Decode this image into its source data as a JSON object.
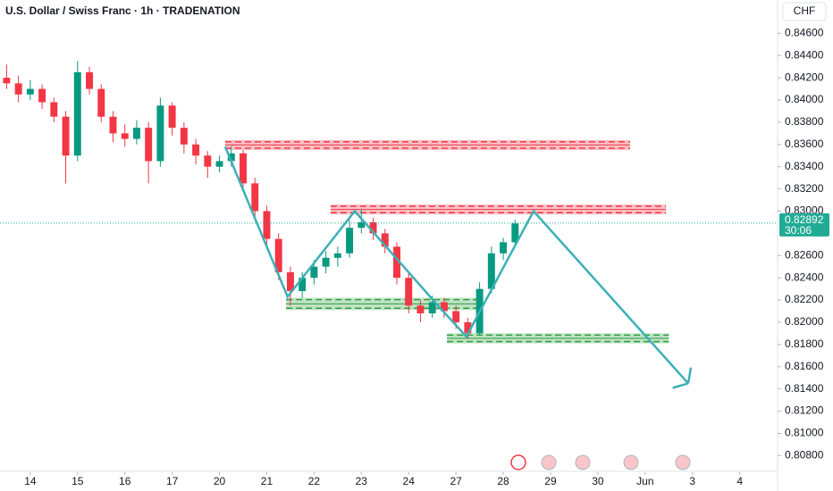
{
  "chart_data": {
    "type": "candlestick",
    "title": "U.S. Dollar / Swiss Franc · 1h · TRADENATION",
    "currency": "CHF",
    "xlim": [
      -0.64,
      15.8
    ],
    "xticks": [
      {
        "value": 0,
        "label": "14"
      },
      {
        "value": 1,
        "label": "15"
      },
      {
        "value": 2,
        "label": "16"
      },
      {
        "value": 3,
        "label": "17"
      },
      {
        "value": 4,
        "label": "20"
      },
      {
        "value": 5,
        "label": "21"
      },
      {
        "value": 6,
        "label": "22"
      },
      {
        "value": 7,
        "label": "23"
      },
      {
        "value": 8,
        "label": "24"
      },
      {
        "value": 9,
        "label": "27"
      },
      {
        "value": 10,
        "label": "28"
      },
      {
        "value": 11,
        "label": "29"
      },
      {
        "value": 12,
        "label": "30"
      },
      {
        "value": 13,
        "label": "Jun"
      },
      {
        "value": 14,
        "label": "3"
      },
      {
        "value": 15,
        "label": "4"
      }
    ],
    "ylim": [
      0.8065,
      0.849
    ],
    "yticks": [
      {
        "value": 0.846,
        "label": "0.84600"
      },
      {
        "value": 0.844,
        "label": "0.84400"
      },
      {
        "value": 0.842,
        "label": "0.84200"
      },
      {
        "value": 0.84,
        "label": "0.84000"
      },
      {
        "value": 0.838,
        "label": "0.83800"
      },
      {
        "value": 0.836,
        "label": "0.83600"
      },
      {
        "value": 0.834,
        "label": "0.83400"
      },
      {
        "value": 0.832,
        "label": "0.83200"
      },
      {
        "value": 0.83,
        "label": "0.83000"
      },
      {
        "value": 0.826,
        "label": "0.82600"
      },
      {
        "value": 0.824,
        "label": "0.82400"
      },
      {
        "value": 0.822,
        "label": "0.82200"
      },
      {
        "value": 0.82,
        "label": "0.82000"
      },
      {
        "value": 0.818,
        "label": "0.81800"
      },
      {
        "value": 0.816,
        "label": "0.81600"
      },
      {
        "value": 0.814,
        "label": "0.81400"
      },
      {
        "value": 0.812,
        "label": "0.81200"
      },
      {
        "value": 0.81,
        "label": "0.81000"
      },
      {
        "value": 0.808,
        "label": "0.80800"
      }
    ],
    "grid": false,
    "up_color": "#089981",
    "down_color": "#f23645",
    "candles": [
      [
        -0.5,
        0.842,
        0.8432,
        0.841,
        0.8415
      ],
      [
        -0.25,
        0.8415,
        0.8422,
        0.8398,
        0.8405
      ],
      [
        0,
        0.8405,
        0.8418,
        0.84,
        0.841
      ],
      [
        0.25,
        0.841,
        0.8414,
        0.8392,
        0.8398
      ],
      [
        0.5,
        0.8398,
        0.8402,
        0.838,
        0.8385
      ],
      [
        0.75,
        0.8385,
        0.839,
        0.8325,
        0.835
      ],
      [
        1,
        0.835,
        0.8435,
        0.8345,
        0.8425
      ],
      [
        1.25,
        0.8425,
        0.843,
        0.8405,
        0.841
      ],
      [
        1.5,
        0.841,
        0.8414,
        0.838,
        0.8385
      ],
      [
        1.75,
        0.8385,
        0.839,
        0.8362,
        0.837
      ],
      [
        2,
        0.837,
        0.8378,
        0.8358,
        0.8365
      ],
      [
        2.25,
        0.8365,
        0.8382,
        0.836,
        0.8375
      ],
      [
        2.5,
        0.8375,
        0.838,
        0.8325,
        0.8345
      ],
      [
        2.75,
        0.8345,
        0.8402,
        0.834,
        0.8395
      ],
      [
        3,
        0.8395,
        0.8398,
        0.8368,
        0.8375
      ],
      [
        3.25,
        0.8375,
        0.838,
        0.8352,
        0.836
      ],
      [
        3.5,
        0.836,
        0.8365,
        0.8342,
        0.835
      ],
      [
        3.75,
        0.835,
        0.8354,
        0.833,
        0.834
      ],
      [
        4,
        0.834,
        0.835,
        0.8335,
        0.8345
      ],
      [
        4.25,
        0.8345,
        0.8358,
        0.834,
        0.8352
      ],
      [
        4.5,
        0.8352,
        0.8355,
        0.8318,
        0.8325
      ],
      [
        4.75,
        0.8325,
        0.833,
        0.8292,
        0.83
      ],
      [
        5,
        0.83,
        0.8305,
        0.8268,
        0.8275
      ],
      [
        5.25,
        0.8275,
        0.828,
        0.8238,
        0.8245
      ],
      [
        5.5,
        0.8245,
        0.825,
        0.8215,
        0.8228
      ],
      [
        5.75,
        0.8228,
        0.8245,
        0.8222,
        0.824
      ],
      [
        6,
        0.824,
        0.8256,
        0.8234,
        0.825
      ],
      [
        6.25,
        0.825,
        0.8264,
        0.8244,
        0.8258
      ],
      [
        6.5,
        0.8258,
        0.8268,
        0.825,
        0.8262
      ],
      [
        6.75,
        0.8262,
        0.8292,
        0.8258,
        0.8285
      ],
      [
        7,
        0.8285,
        0.8302,
        0.828,
        0.829
      ],
      [
        7.25,
        0.829,
        0.8294,
        0.8274,
        0.828
      ],
      [
        7.5,
        0.828,
        0.8284,
        0.8262,
        0.8268
      ],
      [
        7.75,
        0.8268,
        0.8272,
        0.8234,
        0.824
      ],
      [
        8,
        0.824,
        0.8244,
        0.8208,
        0.8215
      ],
      [
        8.25,
        0.8215,
        0.822,
        0.82,
        0.8208
      ],
      [
        8.5,
        0.8208,
        0.8224,
        0.8204,
        0.8218
      ],
      [
        8.75,
        0.8218,
        0.8222,
        0.8204,
        0.821
      ],
      [
        9,
        0.821,
        0.8215,
        0.8194,
        0.82
      ],
      [
        9.25,
        0.82,
        0.8204,
        0.8185,
        0.819
      ],
      [
        9.5,
        0.819,
        0.8236,
        0.8188,
        0.823
      ],
      [
        9.75,
        0.823,
        0.8268,
        0.8226,
        0.8262
      ],
      [
        10,
        0.8262,
        0.8276,
        0.8256,
        0.8272
      ],
      [
        10.25,
        0.8272,
        0.8292,
        0.8268,
        0.8289
      ]
    ],
    "zones": [
      {
        "low": 0.8355,
        "high": 0.8364,
        "x0": 4.12,
        "x1": 12.68,
        "color": "#f23645"
      },
      {
        "low": 0.8297,
        "high": 0.8306,
        "x0": 6.35,
        "x1": 13.44,
        "color": "#f23645"
      },
      {
        "low": 0.8211,
        "high": 0.8222,
        "x0": 5.41,
        "x1": 9.57,
        "color": "#2e9e3e"
      },
      {
        "low": 0.8181,
        "high": 0.819,
        "x0": 8.81,
        "x1": 13.5,
        "color": "#2e9e3e"
      }
    ],
    "projection": {
      "color": "#3bb0b8",
      "x": [
        4.12,
        5.44,
        6.86,
        8.62,
        9.22,
        10.64,
        13.91
      ],
      "values": [
        0.8358,
        0.8223,
        0.83,
        0.8215,
        0.8187,
        0.83,
        0.8145
      ]
    },
    "last_price": 0.82892,
    "countdown": "30:06",
    "price_color": "#22ab94"
  }
}
